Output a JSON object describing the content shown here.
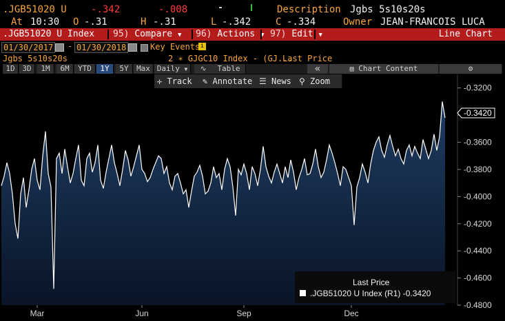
{
  "header": {
    "ticker": ".JGB51020 U",
    "change": "-.342",
    "change_secondary": "-.008",
    "description_label": "Description",
    "description_value": "Jgbs 5s10s20s",
    "at_label": "At",
    "time": "10:30",
    "open_label": "O",
    "open": "-.31",
    "high_label": "H",
    "high": "-.31",
    "low_label": "L",
    "low": "-.342",
    "close_label": "C",
    "close": "-.334",
    "owner_label": "Owner",
    "owner_value": "JEAN-FRANCOIS LUCA"
  },
  "command_bar": {
    "security": ".JGB51020 U Index",
    "compare_num": "95)",
    "compare_label": "Compare",
    "actions_num": "96)",
    "actions_label": "Actions",
    "edit_num": "97)",
    "edit_label": "Edit",
    "chart_type": "Line Chart"
  },
  "date_row": {
    "start_date": "01/30/2017",
    "dash": "-",
    "end_date": "01/30/2018",
    "key_events": "Key Events"
  },
  "series_row": {
    "name": "Jgbs 5s10s20s",
    "overlay": "2 ∗ GJGC10 Index - (GJ...",
    "field": "Last Price"
  },
  "toolbar": {
    "periods": [
      "1D",
      "3D",
      "1M",
      "6M",
      "YTD",
      "1Y",
      "5Y",
      "Max"
    ],
    "active_period": "1Y",
    "frequency": "Daily",
    "table_label": "Table",
    "collapse": "«",
    "chart_content": "Chart Content"
  },
  "tools": {
    "track": "Track",
    "annotate": "Annotate",
    "news": "News",
    "zoom": "Zoom"
  },
  "legend": {
    "title": "Last Price",
    "entry": ".JGB51020 U Index  (R1) -0.3420"
  },
  "colors": {
    "background": "#000000",
    "accent_orange": "#f7a53a",
    "command_bar_red": "#b41c1c",
    "series_line": "#ffffff",
    "area_fill_top": "#1e3a5f",
    "area_fill_bottom": "#0a1526"
  },
  "chart_data": {
    "type": "area",
    "ylim": [
      -0.48,
      -0.31
    ],
    "ytick_labels": [
      "-0.3200",
      "-0.3400",
      "-0.3600",
      "-0.3800",
      "-0.4000",
      "-0.4200",
      "-0.4400",
      "-0.4600",
      "-0.4800"
    ],
    "x_tick_labels": [
      "Mar",
      "Jun",
      "Sep",
      "Dec"
    ],
    "last_value_label": "-0.3420",
    "series": [
      {
        "name": ".JGB51020 U Index",
        "values": [
          -0.392,
          -0.385,
          -0.375,
          -0.383,
          -0.398,
          -0.42,
          -0.431,
          -0.398,
          -0.386,
          -0.408,
          -0.395,
          -0.38,
          -0.372,
          -0.388,
          -0.395,
          -0.37,
          -0.352,
          -0.383,
          -0.393,
          -0.468,
          -0.372,
          -0.368,
          -0.383,
          -0.365,
          -0.378,
          -0.39,
          -0.383,
          -0.372,
          -0.362,
          -0.388,
          -0.392,
          -0.372,
          -0.368,
          -0.382,
          -0.375,
          -0.362,
          -0.388,
          -0.394,
          -0.382,
          -0.372,
          -0.362,
          -0.375,
          -0.383,
          -0.392,
          -0.38,
          -0.366,
          -0.373,
          -0.385,
          -0.378,
          -0.37,
          -0.362,
          -0.38,
          -0.383,
          -0.389,
          -0.386,
          -0.38,
          -0.375,
          -0.37,
          -0.372,
          -0.383,
          -0.378,
          -0.39,
          -0.395,
          -0.385,
          -0.383,
          -0.39,
          -0.398,
          -0.395,
          -0.408,
          -0.396,
          -0.385,
          -0.382,
          -0.377,
          -0.385,
          -0.398,
          -0.396,
          -0.39,
          -0.378,
          -0.386,
          -0.383,
          -0.395,
          -0.38,
          -0.372,
          -0.378,
          -0.393,
          -0.414,
          -0.38,
          -0.384,
          -0.376,
          -0.383,
          -0.395,
          -0.378,
          -0.383,
          -0.392,
          -0.38,
          -0.363,
          -0.378,
          -0.385,
          -0.39,
          -0.382,
          -0.376,
          -0.383,
          -0.39,
          -0.378,
          -0.386,
          -0.373,
          -0.382,
          -0.395,
          -0.386,
          -0.38,
          -0.372,
          -0.384,
          -0.383,
          -0.376,
          -0.365,
          -0.378,
          -0.386,
          -0.382,
          -0.373,
          -0.362,
          -0.368,
          -0.375,
          -0.383,
          -0.392,
          -0.378,
          -0.38,
          -0.386,
          -0.392,
          -0.421,
          -0.393,
          -0.386,
          -0.376,
          -0.382,
          -0.39,
          -0.376,
          -0.366,
          -0.36,
          -0.356,
          -0.366,
          -0.371,
          -0.362,
          -0.355,
          -0.363,
          -0.37,
          -0.365,
          -0.372,
          -0.376,
          -0.366,
          -0.362,
          -0.37,
          -0.363,
          -0.368,
          -0.372,
          -0.358,
          -0.365,
          -0.372,
          -0.366,
          -0.354,
          -0.366,
          -0.356,
          -0.33,
          -0.342
        ]
      }
    ]
  }
}
